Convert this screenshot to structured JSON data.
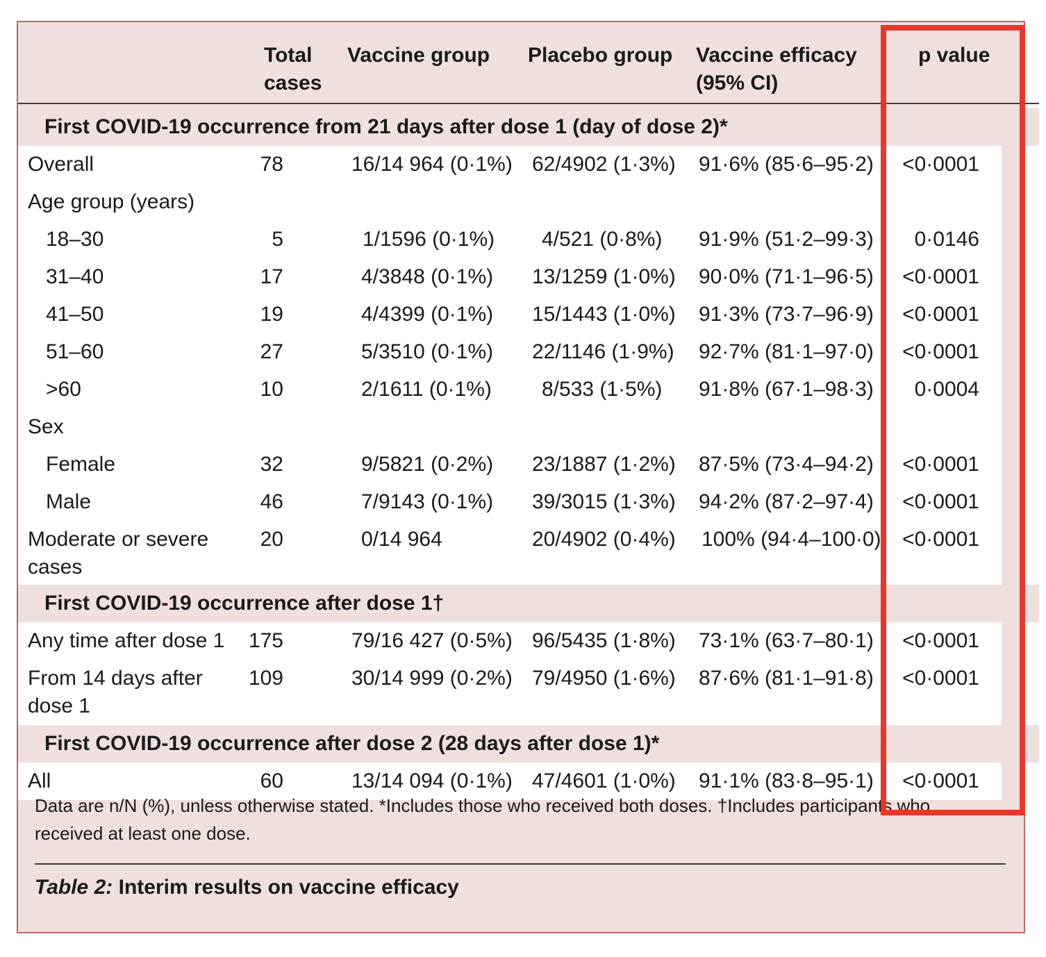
{
  "columns": {
    "total": "Total cases",
    "vaccine": "Vaccine group",
    "placebo": "Placebo group",
    "efficacy": "Vaccine efficacy (95% CI)",
    "pvalue": "p value"
  },
  "sections": [
    {
      "title": "First COVID-19 occurrence from 21 days after dose 1 (day of dose 2)*",
      "rows": [
        {
          "label": "Overall",
          "total": "78",
          "vaccine": "16/14 964 (0·1%)",
          "placebo": "62/4902 (1·3%)",
          "efficacy": "91·6% (85·6–95·2)",
          "pvalue": "<0·0001"
        },
        {
          "label": "Age group (years)",
          "total": "",
          "vaccine": "",
          "placebo": "",
          "efficacy": "",
          "pvalue": ""
        },
        {
          "label": "18–30",
          "total": "5",
          "vaccine": "1/1596 (0·1%)",
          "placebo": "4/521 (0·8%)",
          "efficacy": "91·9% (51·2–99·3)",
          "pvalue": "0·0146"
        },
        {
          "label": "31–40",
          "total": "17",
          "vaccine": "4/3848 (0·1%)",
          "placebo": "13/1259 (1·0%)",
          "efficacy": "90·0% (71·1–96·5)",
          "pvalue": "<0·0001"
        },
        {
          "label": "41–50",
          "total": "19",
          "vaccine": "4/4399 (0·1%)",
          "placebo": "15/1443 (1·0%)",
          "efficacy": "91·3% (73·7–96·9)",
          "pvalue": "<0·0001"
        },
        {
          "label": "51–60",
          "total": "27",
          "vaccine": "5/3510 (0·1%)",
          "placebo": "22/1146 (1·9%)",
          "efficacy": "92·7% (81·1–97·0)",
          "pvalue": "<0·0001"
        },
        {
          "label": ">60",
          "total": "10",
          "vaccine": "2/1611 (0·1%)",
          "placebo": "8/533 (1·5%)",
          "efficacy": "91·8% (67·1–98·3)",
          "pvalue": "0·0004"
        },
        {
          "label": "Sex",
          "total": "",
          "vaccine": "",
          "placebo": "",
          "efficacy": "",
          "pvalue": ""
        },
        {
          "label": "Female",
          "total": "32",
          "vaccine": "9/5821 (0·2%)",
          "placebo": "23/1887 (1·2%)",
          "efficacy": "87·5% (73·4–94·2)",
          "pvalue": "<0·0001"
        },
        {
          "label": "Male",
          "total": "46",
          "vaccine": "7/9143 (0·1%)",
          "placebo": "39/3015 (1·3%)",
          "efficacy": "94·2% (87·2–97·4)",
          "pvalue": "<0·0001"
        },
        {
          "label": "Moderate or severe cases",
          "total": "20",
          "vaccine": "0/14 964",
          "placebo": "20/4902 (0·4%)",
          "efficacy": "100% (94·4–100·0)",
          "pvalue": "<0·0001"
        }
      ]
    },
    {
      "title": "First COVID-19 occurrence after dose 1†",
      "rows": [
        {
          "label": "Any time after dose 1",
          "total": "175",
          "vaccine": "79/16 427 (0·5%)",
          "placebo": "96/5435 (1·8%)",
          "efficacy": "73·1% (63·7–80·1)",
          "pvalue": "<0·0001"
        },
        {
          "label": "From 14 days after dose 1",
          "total": "109",
          "vaccine": "30/14 999 (0·2%)",
          "placebo": "79/4950 (1·6%)",
          "efficacy": "87·6% (81·1–91·8)",
          "pvalue": "<0·0001"
        }
      ]
    },
    {
      "title": "First COVID-19 occurrence after dose 2 (28 days after dose 1)*",
      "rows": [
        {
          "label": "All",
          "total": "60",
          "vaccine": "13/14 094 (0·1%)",
          "placebo": "47/4601 (1·0%)",
          "efficacy": "91·1% (83·8–95·1)",
          "pvalue": "<0·0001"
        }
      ]
    }
  ],
  "footnote": "Data are n/N (%), unless otherwise stated. *Includes those who received both doses. †Includes participants who received at least one dose.",
  "caption": {
    "prefix": "Table 2:",
    "text": "Interim results on vaccine efficacy"
  },
  "colors": {
    "panel_bg": "#efdfdd",
    "panel_border": "#b56a6a",
    "highlight": "#e8372b"
  }
}
